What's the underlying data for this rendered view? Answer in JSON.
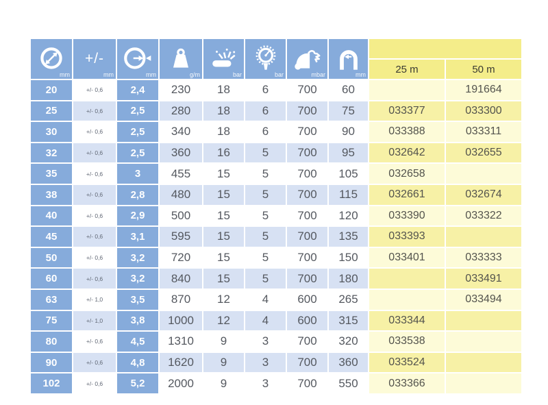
{
  "colors": {
    "header_blue": "#86abdb",
    "row_light_blue": "#d7e1f3",
    "row_white": "#ffffff",
    "header_yellow": "#f4ed8a",
    "row_yellow_light": "#fdfbd8",
    "row_yellow_mid": "#f7f1a6",
    "data_text": "#54585f"
  },
  "header": {
    "columns": [
      {
        "icon": "inner-diameter-icon",
        "unit": "mm"
      },
      {
        "icon": "tolerance-icon",
        "label": "+/-",
        "unit": "mm"
      },
      {
        "icon": "wall-thickness-icon",
        "unit": "mm"
      },
      {
        "icon": "weight-icon",
        "unit": "g/m"
      },
      {
        "icon": "burst-pressure-icon",
        "unit": "bar"
      },
      {
        "icon": "working-pressure-icon",
        "unit": "bar"
      },
      {
        "icon": "vacuum-icon",
        "unit": "mbar"
      },
      {
        "icon": "bend-radius-icon",
        "unit": "mm"
      }
    ],
    "length_columns": {
      "col_25": "25 m",
      "col_50": "50 m"
    }
  },
  "rows": [
    {
      "id_mm": "20",
      "tolerance_mm": "+/- 0,6",
      "wall_mm": "2,4",
      "weight_gm": "230",
      "burst_bar": "18",
      "working_bar": "6",
      "vacuum_mbar": "700",
      "bend_radius_mm": "60",
      "code_25m": "",
      "code_50m": "191664"
    },
    {
      "id_mm": "25",
      "tolerance_mm": "+/- 0,6",
      "wall_mm": "2,5",
      "weight_gm": "280",
      "burst_bar": "18",
      "working_bar": "6",
      "vacuum_mbar": "700",
      "bend_radius_mm": "75",
      "code_25m": "033377",
      "code_50m": "033300"
    },
    {
      "id_mm": "30",
      "tolerance_mm": "+/- 0,6",
      "wall_mm": "2,5",
      "weight_gm": "340",
      "burst_bar": "18",
      "working_bar": "6",
      "vacuum_mbar": "700",
      "bend_radius_mm": "90",
      "code_25m": "033388",
      "code_50m": "033311"
    },
    {
      "id_mm": "32",
      "tolerance_mm": "+/- 0,6",
      "wall_mm": "2,5",
      "weight_gm": "360",
      "burst_bar": "16",
      "working_bar": "5",
      "vacuum_mbar": "700",
      "bend_radius_mm": "95",
      "code_25m": "032642",
      "code_50m": "032655"
    },
    {
      "id_mm": "35",
      "tolerance_mm": "+/- 0,6",
      "wall_mm": "3",
      "weight_gm": "455",
      "burst_bar": "15",
      "working_bar": "5",
      "vacuum_mbar": "700",
      "bend_radius_mm": "105",
      "code_25m": "032658",
      "code_50m": ""
    },
    {
      "id_mm": "38",
      "tolerance_mm": "+/- 0,6",
      "wall_mm": "2,8",
      "weight_gm": "480",
      "burst_bar": "15",
      "working_bar": "5",
      "vacuum_mbar": "700",
      "bend_radius_mm": "115",
      "code_25m": "032661",
      "code_50m": "032674"
    },
    {
      "id_mm": "40",
      "tolerance_mm": "+/- 0,6",
      "wall_mm": "2,9",
      "weight_gm": "500",
      "burst_bar": "15",
      "working_bar": "5",
      "vacuum_mbar": "700",
      "bend_radius_mm": "120",
      "code_25m": "033390",
      "code_50m": "033322"
    },
    {
      "id_mm": "45",
      "tolerance_mm": "+/- 0,6",
      "wall_mm": "3,1",
      "weight_gm": "595",
      "burst_bar": "15",
      "working_bar": "5",
      "vacuum_mbar": "700",
      "bend_radius_mm": "135",
      "code_25m": "033393",
      "code_50m": ""
    },
    {
      "id_mm": "50",
      "tolerance_mm": "+/- 0,6",
      "wall_mm": "3,2",
      "weight_gm": "720",
      "burst_bar": "15",
      "working_bar": "5",
      "vacuum_mbar": "700",
      "bend_radius_mm": "150",
      "code_25m": "033401",
      "code_50m": "033333"
    },
    {
      "id_mm": "60",
      "tolerance_mm": "+/- 0,6",
      "wall_mm": "3,2",
      "weight_gm": "840",
      "burst_bar": "15",
      "working_bar": "5",
      "vacuum_mbar": "700",
      "bend_radius_mm": "180",
      "code_25m": "",
      "code_50m": "033491"
    },
    {
      "id_mm": "63",
      "tolerance_mm": "+/- 1,0",
      "wall_mm": "3,5",
      "weight_gm": "870",
      "burst_bar": "12",
      "working_bar": "4",
      "vacuum_mbar": "600",
      "bend_radius_mm": "265",
      "code_25m": "",
      "code_50m": "033494"
    },
    {
      "id_mm": "75",
      "tolerance_mm": "+/- 1,0",
      "wall_mm": "3,8",
      "weight_gm": "1000",
      "burst_bar": "12",
      "working_bar": "4",
      "vacuum_mbar": "600",
      "bend_radius_mm": "315",
      "code_25m": "033344",
      "code_50m": ""
    },
    {
      "id_mm": "80",
      "tolerance_mm": "+/- 0,6",
      "wall_mm": "4,5",
      "weight_gm": "1310",
      "burst_bar": "9",
      "working_bar": "3",
      "vacuum_mbar": "700",
      "bend_radius_mm": "320",
      "code_25m": "033538",
      "code_50m": ""
    },
    {
      "id_mm": "90",
      "tolerance_mm": "+/- 0,6",
      "wall_mm": "4,8",
      "weight_gm": "1620",
      "burst_bar": "9",
      "working_bar": "3",
      "vacuum_mbar": "700",
      "bend_radius_mm": "360",
      "code_25m": "033524",
      "code_50m": ""
    },
    {
      "id_mm": "102",
      "tolerance_mm": "+/- 0,6",
      "wall_mm": "5,2",
      "weight_gm": "2000",
      "burst_bar": "9",
      "working_bar": "3",
      "vacuum_mbar": "700",
      "bend_radius_mm": "550",
      "code_25m": "033366",
      "code_50m": ""
    }
  ]
}
